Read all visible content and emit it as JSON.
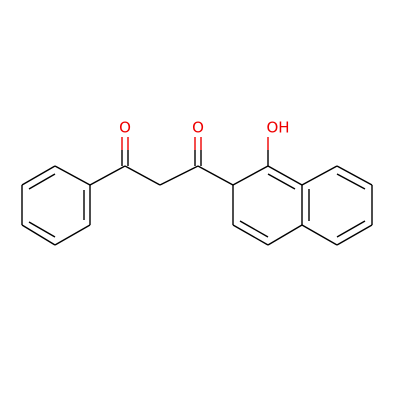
{
  "atoms": {
    "ketone_oxygen_1": "O",
    "ketone_oxygen_2": "O",
    "hydroxyl": "OH"
  }
}
